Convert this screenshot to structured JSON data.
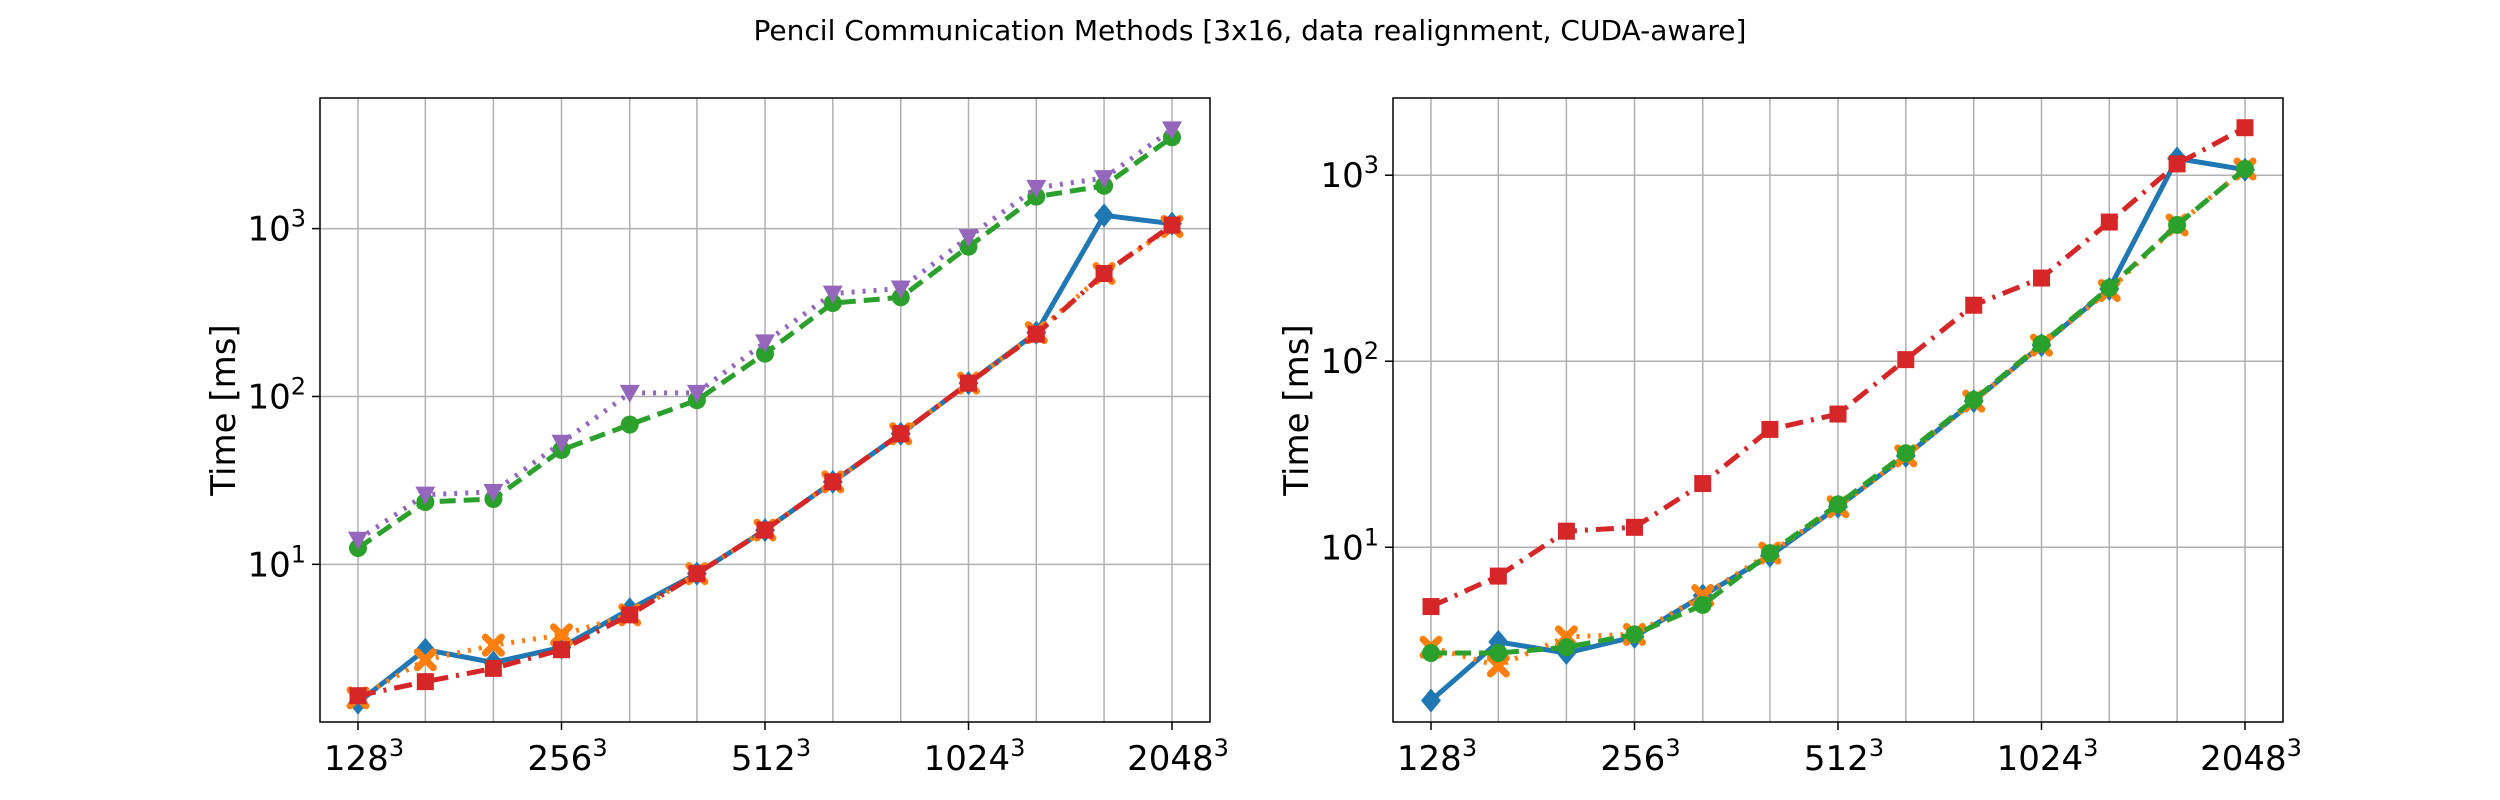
{
  "title": "Pencil Communication Methods [3x16, data realignment, CUDA-aware]",
  "colors": {
    "blue": "#1f77b4",
    "orange": "#ff7f0e",
    "green": "#2ca02c",
    "red": "#d62728",
    "purple": "#9467bd",
    "grid": "#b0b0b0"
  },
  "chart_data": [
    {
      "type": "line",
      "ylabel": "Time [ms]",
      "xlabel": "",
      "yscale": "log",
      "ylim": [
        1.15,
        6000
      ],
      "yticks": [
        10,
        100,
        1000
      ],
      "ytick_labels": [
        "10^1",
        "10^2",
        "10^3"
      ],
      "x": [
        128,
        161,
        203,
        256,
        323,
        406,
        512,
        645,
        813,
        1024,
        1290,
        1625,
        2048
      ],
      "xtick_labels": [
        "128^3",
        "256^3",
        "512^3",
        "1024^3",
        "2048^3"
      ],
      "xtick_positions": [
        128,
        256,
        512,
        1024,
        2048
      ],
      "grid": true,
      "series": [
        {
          "color": "blue",
          "marker": "D",
          "linestyle": "solid",
          "values": [
            1.5,
            3.1,
            2.6,
            3.2,
            5.4,
            8.8,
            16,
            31,
            60,
            120,
            240,
            1200,
            1070
          ]
        },
        {
          "color": "orange",
          "marker": "X",
          "linestyle": "dotted",
          "values": [
            1.6,
            2.7,
            3.3,
            3.8,
            5.0,
            8.8,
            16,
            31,
            60,
            120,
            240,
            540,
            1030
          ]
        },
        {
          "color": "green",
          "marker": "o",
          "linestyle": "dashed",
          "values": [
            12.5,
            23.5,
            24.5,
            48,
            68,
            95,
            180,
            360,
            390,
            780,
            1550,
            1800,
            3500
          ]
        },
        {
          "color": "red",
          "marker": "s",
          "linestyle": "dashdot",
          "values": [
            1.65,
            2.0,
            2.4,
            3.1,
            5.0,
            8.8,
            16,
            31,
            60,
            120,
            235,
            540,
            1050
          ]
        },
        {
          "color": "purple",
          "marker": "v",
          "linestyle": "dotted",
          "values": [
            14,
            26,
            27,
            53,
            105,
            105,
            210,
            410,
            440,
            890,
            1750,
            2000,
            3900
          ]
        }
      ]
    },
    {
      "type": "line",
      "ylabel": "Time [ms]",
      "xlabel": "",
      "yscale": "log",
      "ylim": [
        1.15,
        2600
      ],
      "yticks": [
        10,
        100,
        1000
      ],
      "ytick_labels": [
        "10^1",
        "10^2",
        "10^3"
      ],
      "x": [
        128,
        161,
        203,
        256,
        323,
        406,
        512,
        645,
        813,
        1024,
        1290,
        1625,
        2048
      ],
      "xtick_labels": [
        "128^3",
        "256^3",
        "512^3",
        "1024^3",
        "2048^3"
      ],
      "xtick_positions": [
        128,
        256,
        512,
        1024,
        2048
      ],
      "grid": true,
      "series": [
        {
          "color": "blue",
          "marker": "D",
          "linestyle": "solid",
          "values": [
            1.5,
            3.1,
            2.7,
            3.3,
            5.5,
            9.0,
            16.5,
            31,
            61,
            122,
            245,
            1230,
            1070
          ]
        },
        {
          "color": "orange",
          "marker": "X",
          "linestyle": "dotted",
          "values": [
            2.9,
            2.3,
            3.3,
            3.4,
            5.5,
            9.3,
            16.5,
            31,
            61,
            122,
            240,
            540,
            1080
          ]
        },
        {
          "color": "green",
          "marker": "o",
          "linestyle": "dashed",
          "values": [
            2.7,
            2.7,
            2.9,
            3.4,
            4.9,
            9.3,
            17,
            32,
            62,
            124,
            248,
            540,
            1080
          ]
        },
        {
          "color": "red",
          "marker": "s",
          "linestyle": "dashdot",
          "values": [
            4.8,
            7.0,
            12.2,
            12.8,
            22,
            43,
            52,
            102,
            200,
            280,
            560,
            1150,
            1800
          ]
        }
      ]
    }
  ]
}
